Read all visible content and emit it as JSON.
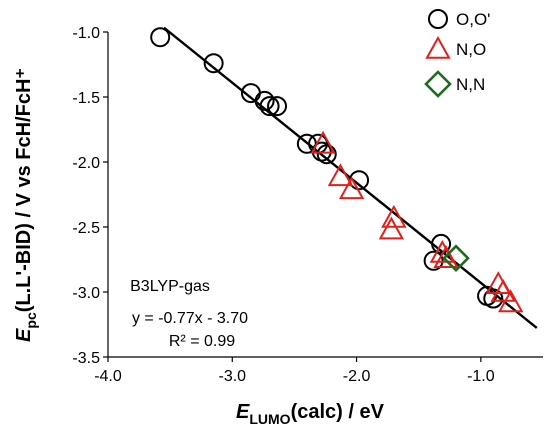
{
  "chart_data": {
    "type": "scatter",
    "xlim": [
      -4.0,
      -0.5
    ],
    "ylim": [
      -3.5,
      -1.0
    ],
    "xticks": [
      "-4.0",
      "-3.0",
      "-2.0",
      "-1.0"
    ],
    "yticks": [
      "-1.0",
      "-1.5",
      "-2.0",
      "-2.5",
      "-3.0",
      "-3.5"
    ],
    "xlabel": {
      "main": "E",
      "sub": "LUMO",
      "rest": "(calc) / eV"
    },
    "ylabel": {
      "main": "E",
      "sub": "pc",
      "rest": "(L.L'-BID) / V vs FcH/FcH⁺"
    },
    "grid": false,
    "legend_position": "top-right",
    "series": [
      {
        "name": "O,O'",
        "marker": "circle",
        "color": "#000000",
        "points": [
          [
            -3.58,
            -1.04
          ],
          [
            -3.15,
            -1.24
          ],
          [
            -2.85,
            -1.47
          ],
          [
            -2.74,
            -1.53
          ],
          [
            -2.7,
            -1.57
          ],
          [
            -2.64,
            -1.57
          ],
          [
            -2.4,
            -1.86
          ],
          [
            -2.31,
            -1.86
          ],
          [
            -2.28,
            -1.92
          ],
          [
            -2.24,
            -1.94
          ],
          [
            -1.98,
            -2.14
          ],
          [
            -1.32,
            -2.63
          ],
          [
            -1.38,
            -2.76
          ],
          [
            -0.95,
            -3.03
          ],
          [
            -0.9,
            -3.05
          ]
        ]
      },
      {
        "name": "N,O",
        "marker": "triangle",
        "color": "#e0201b",
        "points": [
          [
            -2.27,
            -1.86
          ],
          [
            -2.13,
            -2.11
          ],
          [
            -2.04,
            -2.21
          ],
          [
            -1.7,
            -2.43
          ],
          [
            -1.72,
            -2.52
          ],
          [
            -1.31,
            -2.7
          ],
          [
            -1.28,
            -2.74
          ],
          [
            -0.86,
            -2.94
          ],
          [
            -0.82,
            -3.0
          ],
          [
            -0.76,
            -3.08
          ]
        ]
      },
      {
        "name": "N,N",
        "marker": "diamond",
        "color": "#1e6b1e",
        "points": [
          [
            -1.2,
            -2.74
          ]
        ]
      }
    ],
    "fit_line": {
      "slope": -0.77,
      "intercept": -3.7,
      "x_range": [
        -3.55,
        -0.55
      ]
    },
    "annotations": {
      "method": "B3LYP-gas",
      "equation": "y = -0.77x - 3.70",
      "r2": "R² = 0.99"
    }
  }
}
